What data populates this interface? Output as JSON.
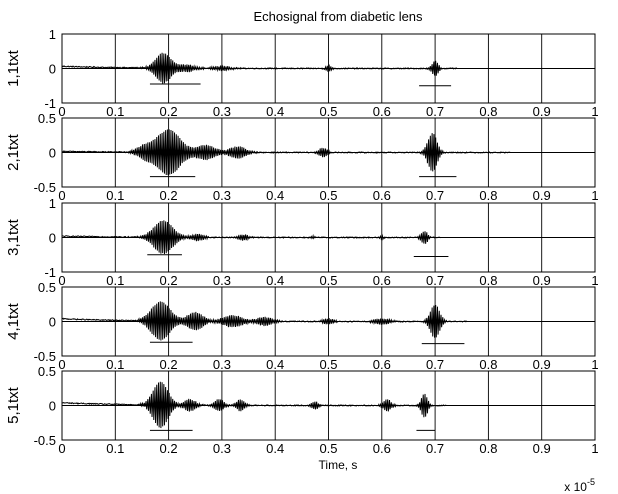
{
  "chart_data": {
    "type": "line",
    "title": "Echosignal from diabetic lens",
    "xlabel": "Time, s",
    "x_multiplier_base": "x 10",
    "x_multiplier_exp": "-5",
    "xlim": [
      0,
      1
    ],
    "x_ticks": [
      "0",
      "0.1",
      "0.2",
      "0.3",
      "0.4",
      "0.5",
      "0.6",
      "0.7",
      "0.8",
      "0.9",
      "1"
    ],
    "grid": true,
    "panels": [
      {
        "ylabel": "1,1txt",
        "ylim": [
          -1,
          1
        ],
        "y_ticks": [
          "1",
          "0",
          "-1"
        ],
        "y_tick_values": [
          1,
          0,
          -1
        ],
        "baseline": 0.08,
        "signal_end": 0.74,
        "bursts": [
          {
            "center": 0.19,
            "width": 0.02,
            "amp": 0.5,
            "freq": 120
          },
          {
            "center": 0.235,
            "width": 0.02,
            "amp": 0.12,
            "freq": 120
          },
          {
            "center": 0.3,
            "width": 0.02,
            "amp": 0.08,
            "freq": 120
          },
          {
            "center": 0.5,
            "width": 0.006,
            "amp": 0.12,
            "freq": 120
          },
          {
            "center": 0.7,
            "width": 0.008,
            "amp": 0.25,
            "freq": 120
          }
        ],
        "markers": [
          {
            "x0": 0.165,
            "x1": 0.26,
            "y": -0.45
          },
          {
            "x0": 0.67,
            "x1": 0.73,
            "y": -0.5
          }
        ]
      },
      {
        "ylabel": "2,1txt",
        "ylim": [
          -0.5,
          0.5
        ],
        "y_ticks": [
          "0.5",
          "0",
          "-0.5"
        ],
        "y_tick_values": [
          0.5,
          0,
          -0.5
        ],
        "baseline": 0.02,
        "signal_end": 0.84,
        "bursts": [
          {
            "center": 0.2,
            "width": 0.03,
            "amp": 0.38,
            "freq": 120
          },
          {
            "center": 0.155,
            "width": 0.02,
            "amp": 0.1,
            "freq": 120
          },
          {
            "center": 0.27,
            "width": 0.025,
            "amp": 0.12,
            "freq": 120
          },
          {
            "center": 0.33,
            "width": 0.02,
            "amp": 0.1,
            "freq": 120
          },
          {
            "center": 0.49,
            "width": 0.01,
            "amp": 0.08,
            "freq": 120
          },
          {
            "center": 0.695,
            "width": 0.012,
            "amp": 0.32,
            "freq": 120
          }
        ],
        "markers": [
          {
            "x0": 0.165,
            "x1": 0.25,
            "y": -0.35
          },
          {
            "x0": 0.67,
            "x1": 0.74,
            "y": -0.35
          }
        ]
      },
      {
        "ylabel": "3,1txt",
        "ylim": [
          -1,
          1
        ],
        "y_ticks": [
          "1",
          "0",
          "-1"
        ],
        "y_tick_values": [
          1,
          0,
          -1
        ],
        "baseline": 0.05,
        "signal_end": 0.71,
        "bursts": [
          {
            "center": 0.19,
            "width": 0.025,
            "amp": 0.55,
            "freq": 120
          },
          {
            "center": 0.255,
            "width": 0.015,
            "amp": 0.12,
            "freq": 120
          },
          {
            "center": 0.34,
            "width": 0.012,
            "amp": 0.1,
            "freq": 120
          },
          {
            "center": 0.47,
            "width": 0.005,
            "amp": 0.05,
            "freq": 120
          },
          {
            "center": 0.6,
            "width": 0.005,
            "amp": 0.05,
            "freq": 120
          },
          {
            "center": 0.68,
            "width": 0.008,
            "amp": 0.22,
            "freq": 120
          }
        ],
        "markers": [
          {
            "x0": 0.16,
            "x1": 0.225,
            "y": -0.5
          },
          {
            "x0": 0.66,
            "x1": 0.725,
            "y": -0.55
          }
        ]
      },
      {
        "ylabel": "4,1txt",
        "ylim": [
          -0.5,
          0.5
        ],
        "y_ticks": [
          "0.5",
          "0",
          "-0.5"
        ],
        "y_tick_values": [
          0.5,
          0,
          -0.5
        ],
        "baseline": 0.05,
        "signal_end": 0.76,
        "bursts": [
          {
            "center": 0.185,
            "width": 0.025,
            "amp": 0.32,
            "freq": 120
          },
          {
            "center": 0.25,
            "width": 0.02,
            "amp": 0.15,
            "freq": 120
          },
          {
            "center": 0.32,
            "width": 0.025,
            "amp": 0.1,
            "freq": 120
          },
          {
            "center": 0.38,
            "width": 0.02,
            "amp": 0.07,
            "freq": 120
          },
          {
            "center": 0.5,
            "width": 0.012,
            "amp": 0.05,
            "freq": 120
          },
          {
            "center": 0.6,
            "width": 0.02,
            "amp": 0.05,
            "freq": 120
          },
          {
            "center": 0.7,
            "width": 0.012,
            "amp": 0.28,
            "freq": 120
          }
        ],
        "markers": [
          {
            "x0": 0.165,
            "x1": 0.245,
            "y": -0.3
          },
          {
            "x0": 0.675,
            "x1": 0.755,
            "y": -0.32
          }
        ]
      },
      {
        "ylabel": "5,1txt",
        "ylim": [
          -0.5,
          0.5
        ],
        "y_ticks": [
          "0.5",
          "0",
          "-0.5"
        ],
        "y_tick_values": [
          0.5,
          0,
          -0.5
        ],
        "baseline": 0.05,
        "signal_end": 0.72,
        "bursts": [
          {
            "center": 0.185,
            "width": 0.02,
            "amp": 0.38,
            "freq": 120
          },
          {
            "center": 0.24,
            "width": 0.015,
            "amp": 0.1,
            "freq": 120
          },
          {
            "center": 0.295,
            "width": 0.012,
            "amp": 0.1,
            "freq": 120
          },
          {
            "center": 0.335,
            "width": 0.01,
            "amp": 0.1,
            "freq": 120
          },
          {
            "center": 0.475,
            "width": 0.008,
            "amp": 0.07,
            "freq": 120
          },
          {
            "center": 0.61,
            "width": 0.01,
            "amp": 0.1,
            "freq": 120
          },
          {
            "center": 0.68,
            "width": 0.008,
            "amp": 0.2,
            "freq": 120
          }
        ],
        "markers": [
          {
            "x0": 0.165,
            "x1": 0.245,
            "y": -0.36
          },
          {
            "x0": 0.665,
            "x1": 0.7,
            "y": -0.36
          }
        ]
      }
    ]
  }
}
